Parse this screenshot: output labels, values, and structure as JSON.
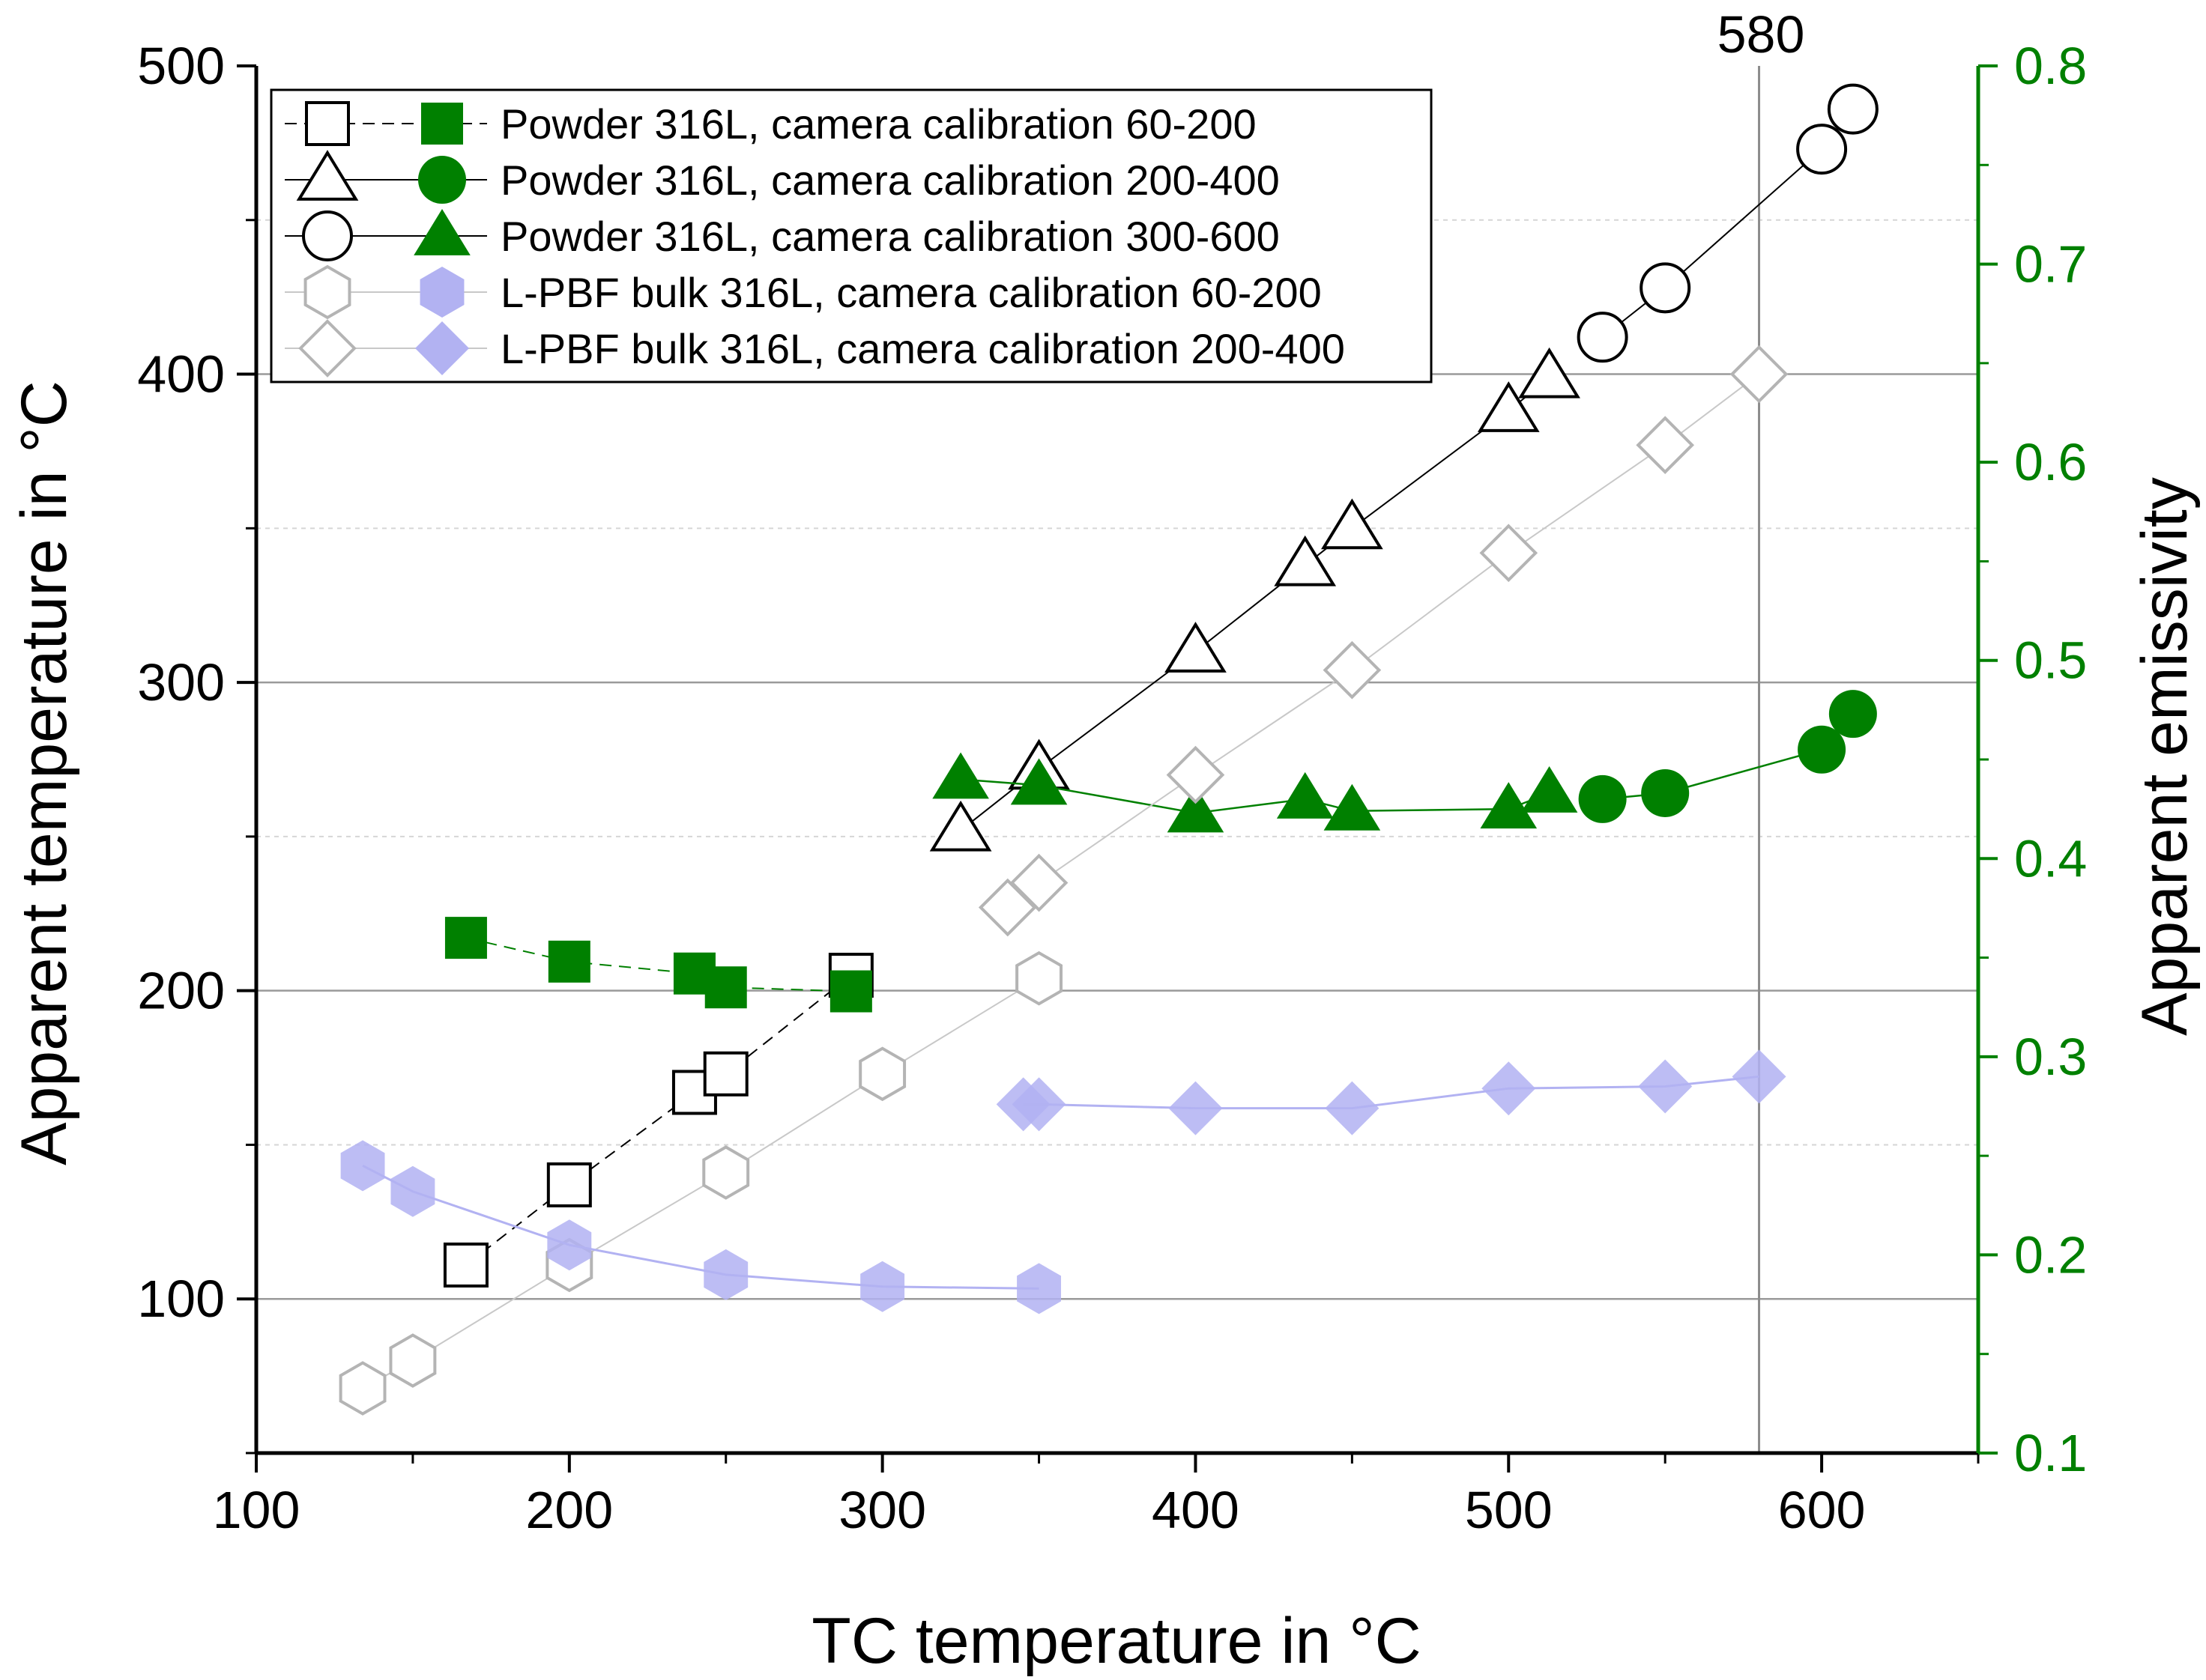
{
  "chart_data": {
    "type": "scatter",
    "xlabel": "TC temperature in °C",
    "ylabel_left": "Apparent temperature in °C",
    "ylabel_right": "Apparent emissivity",
    "xlim": [
      100,
      650
    ],
    "ylim_left": [
      50,
      500
    ],
    "ylim_right": [
      0.1,
      0.8
    ],
    "x_ticks": [
      "100",
      "200",
      "300",
      "400",
      "500",
      "600"
    ],
    "y_left_ticks": [
      "100",
      "200",
      "300",
      "400",
      "500"
    ],
    "y_right_ticks": [
      "0.1",
      "0.2",
      "0.3",
      "0.4",
      "0.5",
      "0.6",
      "0.7",
      "0.8"
    ],
    "reference_line": {
      "x": 580,
      "label": "580"
    },
    "grid": true,
    "legend_position": "top-left",
    "legend": [
      "Powder 316L, camera calibration 60-200",
      "Powder 316L, camera calibration 200-400",
      "Powder 316L, camera calibration 300-600",
      "L-PBF bulk 316L, camera calibration 60-200",
      "L-PBF bulk 316L, camera calibration 200-400"
    ],
    "series": [
      {
        "name": "Powder 316L, camera calibration 60-200 (apparent temperature)",
        "axis": "left",
        "marker": "square-open",
        "color": "#000000",
        "points": [
          [
            167,
            111
          ],
          [
            200,
            137
          ],
          [
            240,
            167
          ],
          [
            250,
            173
          ],
          [
            290,
            205
          ]
        ]
      },
      {
        "name": "Powder 316L, camera calibration 60-200 (apparent emissivity)",
        "axis": "right",
        "marker": "square-filled",
        "color": "#008000",
        "points": [
          [
            167,
            0.36
          ],
          [
            200,
            0.348
          ],
          [
            240,
            0.342
          ],
          [
            250,
            0.335
          ],
          [
            290,
            0.333
          ]
        ]
      },
      {
        "name": "Powder 316L, camera calibration 200-400 (apparent temperature)",
        "axis": "left",
        "marker": "triangle-open",
        "color": "#000000",
        "points": [
          [
            325,
            252
          ],
          [
            350,
            272
          ],
          [
            400,
            310
          ],
          [
            435,
            338
          ],
          [
            450,
            350
          ],
          [
            500,
            388
          ],
          [
            513,
            399
          ]
        ]
      },
      {
        "name": "Powder 316L, camera calibration 200-400 (apparent emissivity)",
        "axis": "right",
        "marker": "triangle-filled",
        "color": "#008000",
        "points": [
          [
            325,
            0.44
          ],
          [
            350,
            0.437
          ],
          [
            400,
            0.423
          ],
          [
            435,
            0.43
          ],
          [
            450,
            0.424
          ],
          [
            500,
            0.425
          ],
          [
            513,
            0.433
          ]
        ]
      },
      {
        "name": "Powder 316L, camera calibration 300-600 (apparent temperature)",
        "axis": "left",
        "marker": "circle-open",
        "color": "#000000",
        "points": [
          [
            530,
            412
          ],
          [
            550,
            428
          ],
          [
            600,
            473
          ],
          [
            610,
            486
          ]
        ]
      },
      {
        "name": "Powder 316L, camera calibration 300-600 (apparent emissivity)",
        "axis": "right",
        "marker": "circle-filled",
        "color": "#008000",
        "points": [
          [
            530,
            0.43
          ],
          [
            550,
            0.433
          ],
          [
            600,
            0.455
          ],
          [
            610,
            0.473
          ]
        ]
      },
      {
        "name": "L-PBF bulk 316L, camera calibration 60-200 (apparent temperature)",
        "axis": "left",
        "marker": "hexagon-open",
        "color": "#b4b4b4",
        "points": [
          [
            134,
            71
          ],
          [
            150,
            80
          ],
          [
            200,
            111
          ],
          [
            250,
            141
          ],
          [
            300,
            173
          ],
          [
            350,
            204
          ]
        ]
      },
      {
        "name": "L-PBF bulk 316L, camera calibration 60-200 (apparent emissivity)",
        "axis": "right",
        "marker": "hexagon-filled",
        "color": "#b2b2f2",
        "points": [
          [
            134,
            0.245
          ],
          [
            150,
            0.232
          ],
          [
            200,
            0.205
          ],
          [
            250,
            0.19
          ],
          [
            300,
            0.184
          ],
          [
            350,
            0.183
          ]
        ]
      },
      {
        "name": "L-PBF bulk 316L, camera calibration 200-400 (apparent temperature)",
        "axis": "left",
        "marker": "diamond-open",
        "color": "#b4b4b4",
        "points": [
          [
            340,
            227
          ],
          [
            350,
            235
          ],
          [
            400,
            270
          ],
          [
            450,
            304
          ],
          [
            500,
            342
          ],
          [
            550,
            377
          ],
          [
            580,
            400
          ]
        ]
      },
      {
        "name": "L-PBF bulk 316L, camera calibration 200-400 (apparent emissivity)",
        "axis": "right",
        "marker": "diamond-filled",
        "color": "#b2b2f2",
        "points": [
          [
            345,
            0.276
          ],
          [
            350,
            0.276
          ],
          [
            400,
            0.274
          ],
          [
            450,
            0.274
          ],
          [
            500,
            0.284
          ],
          [
            550,
            0.285
          ],
          [
            580,
            0.29
          ]
        ]
      }
    ]
  }
}
